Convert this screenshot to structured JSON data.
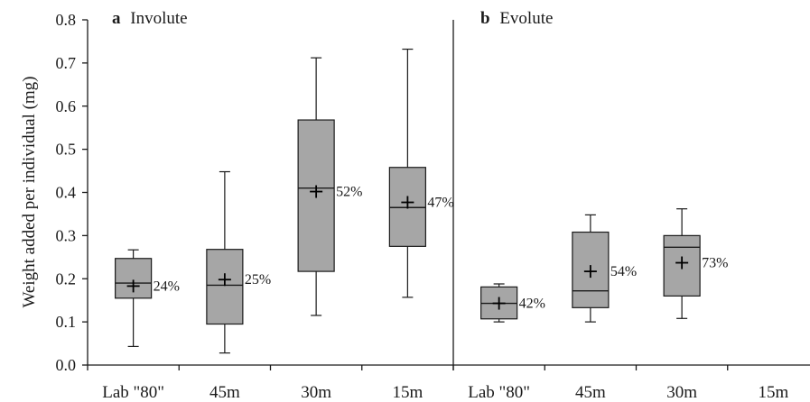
{
  "chart_data": {
    "type": "box",
    "ylabel": "Weight added per individual (mg)",
    "ylim": [
      0,
      0.8
    ],
    "yticks": [
      "0.0",
      "0.1",
      "0.2",
      "0.3",
      "0.4",
      "0.5",
      "0.6",
      "0.7",
      "0.8"
    ],
    "panels": [
      {
        "letter": "a",
        "title": "Involute",
        "categories": [
          "Lab \"80\"",
          "45m",
          "30m",
          "15m"
        ],
        "boxes": [
          {
            "category": "Lab \"80\"",
            "min": 0.043,
            "q1": 0.155,
            "median": 0.19,
            "q3": 0.247,
            "max": 0.267,
            "mean": 0.183,
            "label": "24%"
          },
          {
            "category": "45m",
            "min": 0.028,
            "q1": 0.095,
            "median": 0.185,
            "q3": 0.268,
            "max": 0.448,
            "mean": 0.198,
            "label": "25%"
          },
          {
            "category": "30m",
            "min": 0.115,
            "q1": 0.217,
            "median": 0.41,
            "q3": 0.568,
            "max": 0.712,
            "mean": 0.402,
            "label": "52%"
          },
          {
            "category": "15m",
            "min": 0.157,
            "q1": 0.275,
            "median": 0.365,
            "q3": 0.458,
            "max": 0.732,
            "mean": 0.377,
            "label": "47%"
          }
        ]
      },
      {
        "letter": "b",
        "title": "Evolute",
        "categories": [
          "Lab \"80\"",
          "45m",
          "30m",
          "15m"
        ],
        "boxes": [
          {
            "category": "Lab \"80\"",
            "min": 0.1,
            "q1": 0.107,
            "median": 0.143,
            "q3": 0.181,
            "max": 0.188,
            "mean": 0.143,
            "label": "42%"
          },
          {
            "category": "45m",
            "min": 0.1,
            "q1": 0.133,
            "median": 0.172,
            "q3": 0.308,
            "max": 0.348,
            "mean": 0.217,
            "label": "54%"
          },
          {
            "category": "30m",
            "min": 0.108,
            "q1": 0.16,
            "median": 0.273,
            "q3": 0.3,
            "max": 0.362,
            "mean": 0.237,
            "label": "73%"
          },
          {
            "category": "15m",
            "min": null,
            "q1": null,
            "median": null,
            "q3": null,
            "max": null,
            "mean": null,
            "label": ""
          }
        ]
      }
    ]
  }
}
